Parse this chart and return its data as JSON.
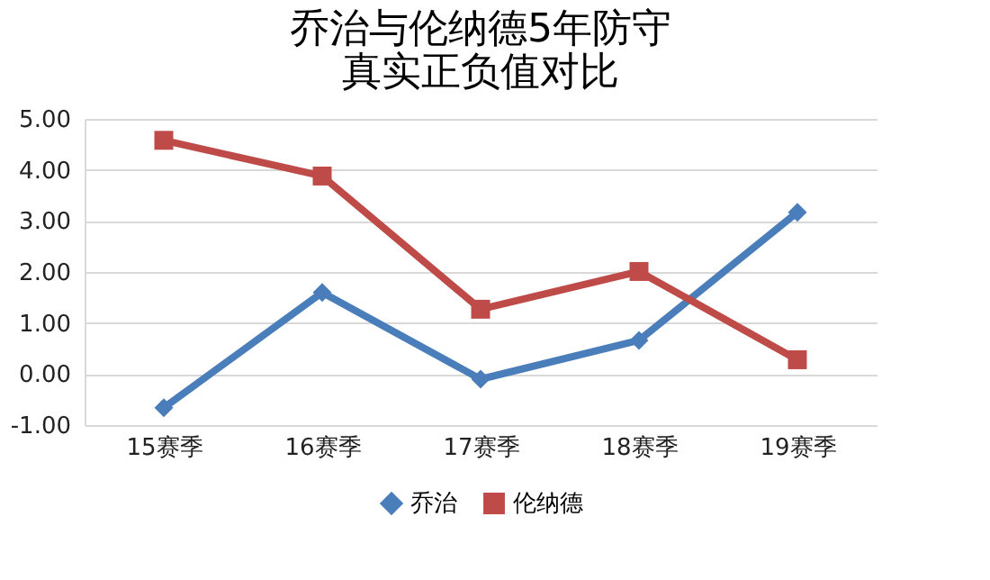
{
  "chart_data": {
    "type": "line",
    "title": [
      "乔治与伦纳德5年防守",
      "真实正负值对比"
    ],
    "categories": [
      "15赛季",
      "16赛季",
      "17赛季",
      "18赛季",
      "19赛季"
    ],
    "series": [
      {
        "name": "乔治",
        "color": "#4a7ebb",
        "marker": "diamond",
        "values": [
          -0.66,
          1.6,
          -0.1,
          0.66,
          3.17
        ]
      },
      {
        "name": "伦纳德",
        "color": "#be4b48",
        "marker": "square",
        "values": [
          4.58,
          3.88,
          1.27,
          2.01,
          0.28
        ]
      }
    ],
    "ylim": [
      -1,
      5
    ],
    "yticks": [
      {
        "value": -1,
        "label": "-1.00"
      },
      {
        "value": 0,
        "label": "0.00"
      },
      {
        "value": 1,
        "label": "1.00"
      },
      {
        "value": 2,
        "label": "2.00"
      },
      {
        "value": 3,
        "label": "3.00"
      },
      {
        "value": 4,
        "label": "4.00"
      },
      {
        "value": 5,
        "label": "5.00"
      }
    ],
    "grid": "y",
    "legend": "bottom"
  }
}
